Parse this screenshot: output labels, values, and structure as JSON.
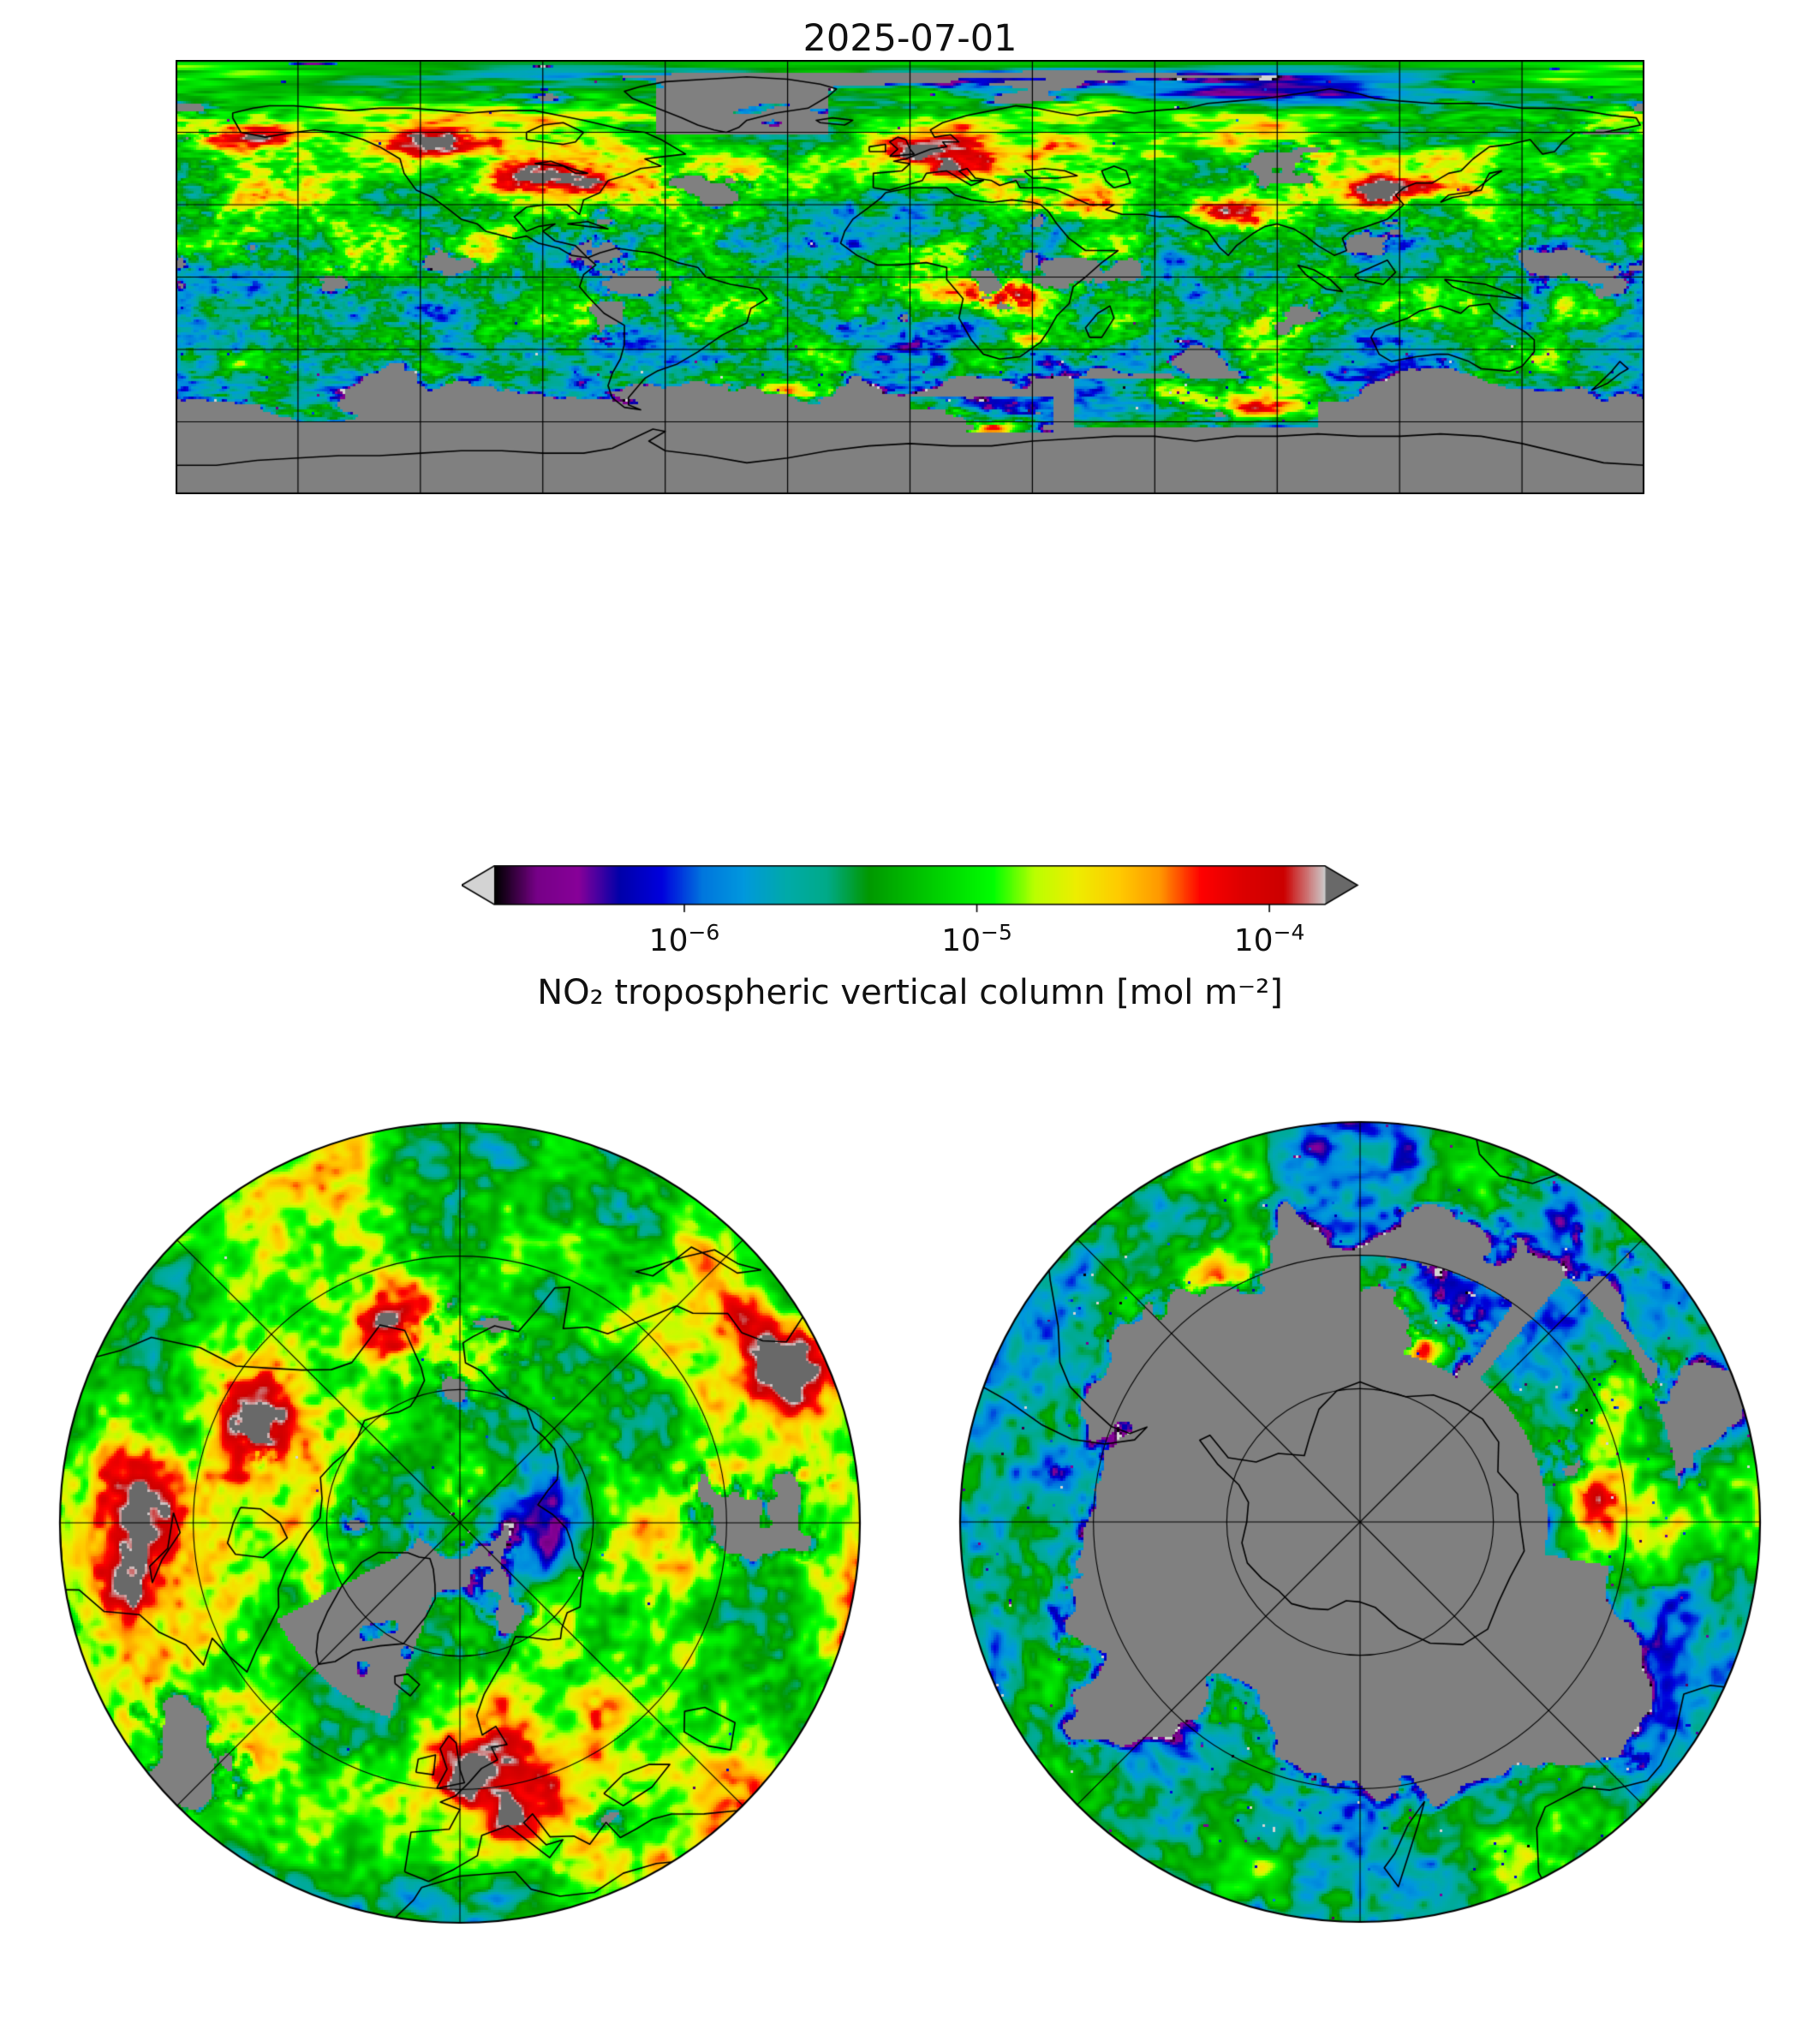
{
  "title": "2025-07-01",
  "colorbar": {
    "label": "NO₂ tropospheric vertical column [mol m⁻²]",
    "ticks": [
      {
        "base": "10",
        "exp": "−6"
      },
      {
        "base": "10",
        "exp": "−5"
      },
      {
        "base": "10",
        "exp": "−4"
      }
    ],
    "scale": "log",
    "log_min": -6.65,
    "log_max": -3.81,
    "under_color": "#d3d3d3",
    "over_color": "#696969"
  },
  "chart_data": {
    "type": "heatmap",
    "variable": "NO₂ tropospheric vertical column",
    "units": "mol m⁻²",
    "date": "2025-07-01",
    "scale": "log",
    "value_range": [
      2.2e-07,
      0.000155
    ],
    "tick_values": [
      1e-06,
      1e-05,
      0.0001
    ],
    "no_data_color": "#808080",
    "colormap_stops": [
      [
        0.0,
        "#000000"
      ],
      [
        0.05,
        "#770088"
      ],
      [
        0.1,
        "#880099"
      ],
      [
        0.15,
        "#0000aa"
      ],
      [
        0.2,
        "#0000dd"
      ],
      [
        0.25,
        "#0077dd"
      ],
      [
        0.3,
        "#0099dd"
      ],
      [
        0.35,
        "#00aaaa"
      ],
      [
        0.4,
        "#00aa88"
      ],
      [
        0.45,
        "#009900"
      ],
      [
        0.5,
        "#00bb00"
      ],
      [
        0.55,
        "#00dd00"
      ],
      [
        0.6,
        "#00ff00"
      ],
      [
        0.65,
        "#bbff00"
      ],
      [
        0.7,
        "#eeee00"
      ],
      [
        0.75,
        "#ffcc00"
      ],
      [
        0.8,
        "#ff9900"
      ],
      [
        0.85,
        "#ff0000"
      ],
      [
        0.9,
        "#dd0000"
      ],
      [
        0.95,
        "#cc0000"
      ],
      [
        1.0,
        "#cccccc"
      ]
    ],
    "maps": [
      {
        "name": "global",
        "projection": "equirectangular",
        "lon_range": [
          -180,
          180
        ],
        "lat_range": [
          -90,
          90
        ],
        "grid_deg": 30
      },
      {
        "name": "north-pole",
        "projection": "north_polar_stereographic",
        "boundary_lat": 30,
        "meridian_step_deg": 45,
        "parallels": [
          50,
          70
        ]
      },
      {
        "name": "south-pole",
        "projection": "south_polar_stereographic",
        "boundary_lat": -30,
        "meridian_step_deg": 45,
        "parallels": [
          -50,
          -70
        ]
      }
    ],
    "hotspots": [
      [
        10,
        50,
        0.85,
        14,
        6
      ],
      [
        2,
        52,
        0.5,
        5,
        3
      ],
      [
        9,
        45,
        0.45,
        3,
        2
      ],
      [
        38,
        56,
        0.5,
        4,
        2.5
      ],
      [
        116,
        35,
        1.25,
        7,
        5
      ],
      [
        127,
        37,
        0.6,
        3,
        2.5
      ],
      [
        139,
        36,
        0.65,
        4,
        2.5
      ],
      [
        122,
        50,
        0.6,
        6,
        3
      ],
      [
        78,
        28,
        0.95,
        7,
        3.5
      ],
      [
        46,
        33,
        0.8,
        6,
        4
      ],
      [
        51,
        27,
        0.6,
        4,
        3
      ],
      [
        31,
        30,
        0.6,
        3,
        2
      ],
      [
        20,
        -5,
        1.05,
        12,
        5
      ],
      [
        18,
        -11,
        0.8,
        8,
        4
      ],
      [
        29,
        -26,
        1.2,
        3.5,
        2.5
      ],
      [
        4,
        9,
        0.55,
        7,
        3
      ],
      [
        -78,
        40,
        0.65,
        6,
        3.5
      ],
      [
        -95,
        41,
        0.4,
        6,
        3
      ],
      [
        -100,
        40,
        0.45,
        12,
        5
      ],
      [
        -160,
        58,
        1.15,
        7,
        4
      ],
      [
        -115,
        55,
        0.75,
        9,
        4
      ],
      [
        -122,
        44,
        0.6,
        4,
        3
      ],
      [
        -99,
        19,
        0.5,
        3,
        2
      ],
      [
        -30,
        -47,
        0.75,
        8,
        3
      ],
      [
        -12,
        -53,
        0.95,
        8,
        3
      ],
      [
        5,
        -58,
        1.1,
        7,
        3
      ],
      [
        20,
        -63,
        1.25,
        6,
        3
      ],
      [
        60,
        -48,
        0.9,
        10,
        3
      ],
      [
        85,
        -55,
        1.0,
        8,
        3
      ],
      [
        115,
        -53,
        0.6,
        8,
        3
      ],
      [
        -72,
        -42,
        0.6,
        5,
        3
      ],
      [
        147,
        -35,
        0.5,
        4,
        2.5
      ]
    ]
  },
  "geo": {
    "coastlines": {
      "north_america": [
        -166,
        66,
        -164,
        60,
        -158,
        58,
        -151,
        60,
        -146,
        61,
        -140,
        60,
        -134,
        57,
        -130,
        54,
        -125,
        49,
        -124,
        43,
        -121,
        36,
        -117,
        33,
        -113,
        28,
        -110,
        24,
        -106,
        22,
        -104,
        19,
        -97,
        16,
        -94,
        17,
        -91,
        14,
        -86,
        12,
        -83,
        9,
        -79,
        8,
        -82,
        13,
        -87,
        15,
        -90,
        19,
        -87,
        22,
        -91,
        21,
        -94,
        19,
        -97,
        25,
        -94,
        29,
        -89,
        30,
        -84,
        30,
        -81,
        26,
        -80,
        32,
        -76,
        35,
        -74,
        40,
        -70,
        42,
        -66,
        45,
        -61,
        46,
        -65,
        49,
        -60,
        50,
        -55,
        51,
        -58,
        54,
        -61,
        57,
        -65,
        60,
        -70,
        61,
        -75,
        63,
        -80,
        65,
        -86,
        67,
        -92,
        69,
        -100,
        69,
        -108,
        68,
        -115,
        69,
        -122,
        70,
        -130,
        70,
        -137,
        69,
        -144,
        70,
        -151,
        71,
        -157,
        71,
        -161,
        70,
        -166,
        68,
        -166,
        66
      ],
      "greenland": [
        -45,
        60,
        -42,
        62,
        -40,
        65,
        -33,
        68,
        -25,
        70,
        -20,
        75,
        -18,
        78,
        -22,
        80,
        -30,
        82,
        -40,
        83,
        -50,
        82,
        -60,
        81,
        -66,
        79,
        -70,
        77,
        -68,
        74,
        -62,
        70,
        -56,
        66,
        -52,
        63,
        -48,
        61,
        -45,
        60
      ],
      "south_america": [
        -79,
        8,
        -76,
        10,
        -72,
        12,
        -68,
        11,
        -63,
        10,
        -57,
        6,
        -52,
        4,
        -50,
        0,
        -44,
        -3,
        -37,
        -5,
        -35,
        -9,
        -39,
        -13,
        -40,
        -19,
        -46,
        -24,
        -52,
        -31,
        -57,
        -36,
        -62,
        -39,
        -65,
        -42,
        -67,
        -46,
        -69,
        -50,
        -69,
        -53,
        -66,
        -55,
        -70,
        -54,
        -73,
        -50,
        -74,
        -45,
        -73,
        -40,
        -71,
        -34,
        -70,
        -28,
        -70,
        -20,
        -75,
        -15,
        -79,
        -8,
        -81,
        -4,
        -80,
        1,
        -77,
        5,
        -79,
        8
      ],
      "africa": [
        -6,
        35,
        0,
        37,
        9,
        37,
        11,
        34,
        15,
        32,
        20,
        31,
        25,
        32,
        30,
        31,
        32,
        30,
        34,
        27,
        36,
        22,
        39,
        16,
        43,
        11,
        48,
        11,
        51,
        11,
        47,
        6,
        43,
        0,
        40,
        -4,
        39,
        -11,
        36,
        -16,
        34,
        -22,
        32,
        -27,
        27,
        -33,
        22,
        -34,
        18,
        -32,
        15,
        -26,
        12,
        -17,
        13,
        -9,
        9,
        -1,
        9,
        4,
        4,
        6,
        -3,
        5,
        -8,
        5,
        -13,
        9,
        -17,
        14,
        -16,
        19,
        -14,
        24,
        -10,
        29,
        -7,
        33,
        -6,
        35
      ],
      "madagascar": [
        44,
        -25,
        47,
        -25,
        50,
        -17,
        49,
        -12,
        46,
        -15,
        43,
        -21,
        44,
        -25
      ],
      "eurasia": [
        -9,
        37,
        -9,
        43,
        -2,
        44,
        0,
        47,
        -4,
        48,
        -1,
        49,
        2,
        51,
        5,
        53,
        9,
        54,
        8,
        56,
        12,
        56,
        10,
        59,
        6,
        58,
        5,
        61,
        8,
        64,
        14,
        67,
        20,
        69,
        26,
        71,
        31,
        70,
        37,
        68,
        41,
        67,
        44,
        68,
        50,
        69,
        55,
        68,
        60,
        69,
        68,
        70,
        73,
        72,
        80,
        73,
        87,
        74,
        95,
        76,
        103,
        78,
        110,
        76,
        114,
        74,
        120,
        73,
        128,
        72,
        135,
        72,
        142,
        72,
        150,
        70,
        158,
        70,
        165,
        69,
        172,
        67,
        178,
        66,
        179,
        63,
        176,
        62,
        170,
        60,
        163,
        60,
        160,
        56,
        158,
        52,
        155,
        51,
        152,
        57,
        147,
        55,
        142,
        54,
        138,
        49,
        135,
        44,
        132,
        43,
        128,
        39,
        124,
        39,
        121,
        37,
        119,
        34,
        121,
        30,
        117,
        24,
        112,
        21,
        108,
        19,
        106,
        16,
        107,
        11,
        104,
        9,
        100,
        13,
        97,
        17,
        94,
        20,
        90,
        22,
        87,
        21,
        84,
        18,
        80,
        13,
        78,
        9,
        76,
        12,
        73,
        19,
        70,
        21,
        66,
        25,
        61,
        25,
        57,
        26,
        52,
        26,
        48,
        28,
        50,
        30,
        48,
        30,
        44,
        30,
        40,
        33,
        36,
        36,
        33,
        37,
        30,
        37,
        27,
        37,
        26,
        40,
        22,
        38,
        20,
        40,
        16,
        41,
        14,
        45,
        12,
        44,
        15,
        40,
        18,
        40,
        15,
        38,
        9,
        44,
        4,
        43,
        3,
        40,
        -1,
        38,
        -5,
        36,
        -9,
        37
      ],
      "uk": [
        -5,
        50,
        -3,
        53,
        -5,
        56,
        -3,
        58,
        -1,
        57,
        0,
        53,
        1,
        51,
        -5,
        50
      ],
      "ireland": [
        -10,
        52,
        -6,
        52,
        -6,
        55,
        -10,
        54,
        -10,
        52
      ],
      "iceland": [
        -22,
        64,
        -16,
        63,
        -14,
        65,
        -19,
        66,
        -23,
        65,
        -22,
        64
      ],
      "japan": [
        130,
        31,
        132,
        34,
        136,
        35,
        140,
        36,
        141,
        40,
        142,
        43,
        145,
        44,
        143,
        42,
        140,
        38,
        137,
        34,
        133,
        33,
        130,
        31
      ],
      "borneo": [
        109,
        1,
        113,
        4,
        117,
        7,
        119,
        2,
        116,
        -3,
        110,
        -1,
        109,
        1
      ],
      "sumatra": [
        95,
        5,
        99,
        3,
        103,
        -1,
        106,
        -6,
        102,
        -5,
        97,
        1,
        95,
        5
      ],
      "new_guinea": [
        131,
        -1,
        136,
        -2,
        141,
        -3,
        146,
        -6,
        150,
        -9,
        144,
        -8,
        138,
        -7,
        133,
        -4,
        131,
        -1
      ],
      "australia": [
        114,
        -22,
        113,
        -25,
        115,
        -32,
        118,
        -35,
        124,
        -33,
        129,
        -32,
        132,
        -32,
        137,
        -35,
        140,
        -38,
        147,
        -39,
        150,
        -37,
        153,
        -31,
        153,
        -26,
        151,
        -23,
        147,
        -19,
        143,
        -14,
        142,
        -11,
        137,
        -12,
        135,
        -15,
        130,
        -12,
        125,
        -14,
        122,
        -17,
        117,
        -20,
        114,
        -22
      ],
      "new_zealand": [
        167,
        -47,
        171,
        -44,
        174,
        -40,
        176,
        -38,
        174,
        -35,
        172,
        -39,
        169,
        -44,
        167,
        -47
      ],
      "antarctica": [
        -180,
        -78,
        -170,
        -78,
        -160,
        -76,
        -150,
        -75,
        -140,
        -74,
        -130,
        -74,
        -120,
        -73,
        -110,
        -72,
        -100,
        -72,
        -90,
        -73,
        -80,
        -73,
        -73,
        -71,
        -68,
        -67,
        -63,
        -63,
        -60,
        -64,
        -64,
        -68,
        -60,
        -72,
        -50,
        -74,
        -40,
        -77,
        -30,
        -75,
        -20,
        -72,
        -10,
        -70,
        0,
        -69,
        10,
        -70,
        20,
        -70,
        30,
        -68,
        40,
        -67,
        50,
        -66,
        60,
        -66,
        70,
        -68,
        80,
        -66,
        90,
        -66,
        100,
        -65,
        110,
        -66,
        120,
        -66,
        130,
        -65,
        140,
        -66,
        150,
        -69,
        160,
        -73,
        170,
        -77,
        180,
        -78
      ],
      "hudson_bay": [
        -94,
        57,
        -90,
        56,
        -85,
        55,
        -82,
        56,
        -80,
        60,
        -85,
        64,
        -90,
        63,
        -94,
        60,
        -94,
        57
      ],
      "great_lakes": [
        -92,
        47,
        -85,
        46,
        -82,
        43,
        -79,
        43,
        -83,
        45,
        -88,
        48,
        -92,
        47
      ],
      "caspian_sea": [
        50,
        37,
        54,
        39,
        53,
        44,
        50,
        46,
        47,
        44,
        48,
        40,
        50,
        37
      ],
      "black_sea": [
        28,
        44,
        33,
        45,
        38,
        44,
        41,
        42,
        36,
        41,
        30,
        41,
        28,
        44
      ],
      "cuba": [
        -84,
        22,
        -79,
        21,
        -74,
        20,
        -79,
        23,
        -84,
        22
      ]
    }
  }
}
